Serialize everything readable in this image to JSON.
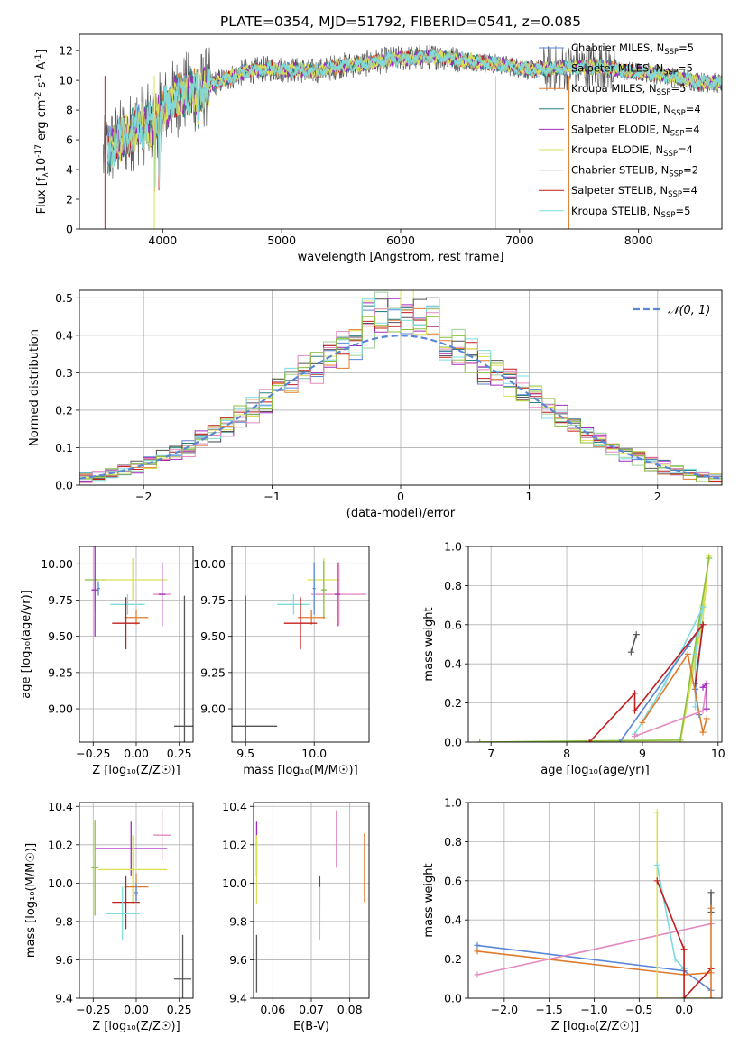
{
  "title": "PLATE=0354, MJD=51792, FIBERID=0541, z=0.085",
  "model_colors": {
    "Chabrier MILES": "#5a86d6",
    "Salpeter MILES": "#9fd09a",
    "Kroupa MILES": "#e07b2c",
    "Chabrier ELODIE": "#2f7f7f",
    "Salpeter ELODIE": "#a12bbd",
    "Kroupa ELODIE": "#d9e056",
    "Chabrier STELIB": "#555555",
    "Salpeter STELIB": "#c11f1f",
    "Kroupa STELIB": "#7fdbe0",
    "extra_pink": "#e38ac0",
    "extra_green": "#8cbf3f"
  },
  "chart_data": [
    {
      "id": "spectrum",
      "type": "line",
      "xlabel": "wavelength [Angstrom, rest frame]",
      "ylabel_html": "Flux [f<tspan font-size='9' dy='3'>λ</tspan><tspan dy='-3'>10</tspan><tspan font-size='9' dy='-5'>-17</tspan><tspan dy='5'> erg cm</tspan><tspan font-size='9' dy='-5'>-2</tspan><tspan dy='5'> s</tspan><tspan font-size='9' dy='-5'>-1</tspan><tspan dy='5'> A</tspan><tspan font-size='9' dy='-5'>-1</tspan><tspan dy='5'>]</tspan>",
      "xlim": [
        3300,
        8700
      ],
      "ylim": [
        0,
        13.1
      ],
      "xticks": [
        4000,
        5000,
        6000,
        7000,
        8000
      ],
      "yticks": [
        0,
        2,
        4,
        6,
        8,
        10,
        12
      ],
      "continuum": [
        [
          3500,
          4.8
        ],
        [
          3600,
          5.8
        ],
        [
          3700,
          6.3
        ],
        [
          3800,
          7.0
        ],
        [
          3900,
          7.0
        ],
        [
          4000,
          8.0
        ],
        [
          4100,
          8.8
        ],
        [
          4200,
          9.2
        ],
        [
          4300,
          9.2
        ],
        [
          4400,
          9.7
        ],
        [
          4500,
          10.0
        ],
        [
          4700,
          10.6
        ],
        [
          4900,
          10.8
        ],
        [
          5100,
          10.7
        ],
        [
          5300,
          10.6
        ],
        [
          5500,
          11.0
        ],
        [
          5700,
          11.1
        ],
        [
          5900,
          11.4
        ],
        [
          6100,
          11.5
        ],
        [
          6300,
          11.6
        ],
        [
          6500,
          11.4
        ],
        [
          6700,
          11.2
        ],
        [
          6900,
          11.0
        ],
        [
          7100,
          10.7
        ],
        [
          7300,
          10.8
        ],
        [
          7500,
          10.9
        ],
        [
          7700,
          10.9
        ],
        [
          7900,
          10.6
        ],
        [
          8100,
          10.5
        ],
        [
          8300,
          10.2
        ],
        [
          8500,
          9.9
        ],
        [
          8700,
          9.8
        ]
      ],
      "dips": [
        [
          7414,
          0
        ],
        [
          6800,
          0
        ],
        [
          3930,
          0
        ],
        [
          3510,
          0
        ]
      ],
      "legend": [
        {
          "name": "Chabrier MILES",
          "nssp": "5"
        },
        {
          "name": "Salpeter MILES",
          "nssp": "5"
        },
        {
          "name": "Kroupa MILES",
          "nssp": "5"
        },
        {
          "name": "Chabrier ELODIE",
          "nssp": "4"
        },
        {
          "name": "Salpeter ELODIE",
          "nssp": "4"
        },
        {
          "name": "Kroupa ELODIE",
          "nssp": "4"
        },
        {
          "name": "Chabrier STELIB",
          "nssp": "2"
        },
        {
          "name": "Salpeter STELIB",
          "nssp": "4"
        },
        {
          "name": "Kroupa STELIB",
          "nssp": "5"
        }
      ]
    },
    {
      "id": "residuals",
      "type": "histogram",
      "xlabel": "(data-model)/error",
      "ylabel": "Normed distribution",
      "xlim": [
        -2.5,
        2.5
      ],
      "ylim": [
        0,
        0.52
      ],
      "xticks": [
        -2,
        -1,
        0,
        1,
        2
      ],
      "xtick_labels": [
        "−2",
        "−1",
        "0",
        "1",
        "2"
      ],
      "yticks": [
        0.0,
        0.1,
        0.2,
        0.3,
        0.4,
        0.5
      ],
      "ytick_labels": [
        "0.0",
        "0.1",
        "0.2",
        "0.3",
        "0.4",
        "0.5"
      ],
      "reference_label": "𝒩(0, 1)",
      "bin_width": 0.1
    },
    {
      "id": "age_vs_Z",
      "type": "scatter",
      "xlabel": "Z [log₁₀(Z/Z☉)]",
      "ylabel": "age  [log₁₀(age/yr)]",
      "xlim": [
        -0.33,
        0.33
      ],
      "ylim": [
        8.77,
        10.12
      ],
      "xticks": [
        -0.25,
        0.0,
        0.25
      ],
      "xtick_labels": [
        "−0.25",
        "0.00",
        "0.25"
      ],
      "yticks": [
        9.0,
        9.25,
        9.5,
        9.75,
        10.0
      ],
      "ytick_labels": [
        "9.00",
        "9.25",
        "9.50",
        "9.75",
        "10.00"
      ],
      "points": [
        {
          "x": -0.24,
          "y": 9.89,
          "xerr": 0.06,
          "yerr": 0.22,
          "color": "#8cbf3f"
        },
        {
          "x": -0.02,
          "y": 9.89,
          "xerr": 0.2,
          "yerr": 0.15,
          "color": "#d9e056"
        },
        {
          "x": 0.15,
          "y": 9.79,
          "xerr": 0.05,
          "yerr": 0.22,
          "color": "#e38ac0"
        },
        {
          "x": -0.05,
          "y": 9.72,
          "xerr": 0.1,
          "yerr": 0.07,
          "color": "#7fdbe0"
        },
        {
          "x": 0.0,
          "y": 9.63,
          "xerr": 0.07,
          "yerr": 0.05,
          "color": "#e07b2c"
        },
        {
          "x": -0.06,
          "y": 9.59,
          "xerr": 0.08,
          "yerr": 0.18,
          "color": "#c11f1f"
        },
        {
          "x": 0.15,
          "y": 9.79,
          "xerr": 0.02,
          "yerr": 0.22,
          "color": "#a12bbd"
        },
        {
          "x": -0.24,
          "y": 9.82,
          "xerr": 0.02,
          "yerr": 0.32,
          "color": "#a12bbd"
        },
        {
          "x": 0.28,
          "y": 8.88,
          "xerr": 0.06,
          "yerr": 0.9,
          "color": "#555555"
        },
        {
          "x": -0.22,
          "y": 9.83,
          "xerr": 0.01,
          "yerr": 0.05,
          "color": "#5a86d6"
        }
      ]
    },
    {
      "id": "age_vs_mass",
      "type": "scatter",
      "xlabel": "mass [log₁₀(M/M☉)]",
      "ylabel": "",
      "xlim": [
        9.4,
        10.4
      ],
      "ylim": [
        8.77,
        10.12
      ],
      "xticks": [
        9.5,
        10.0
      ],
      "xtick_labels": [
        "9.5",
        "10.0"
      ],
      "yticks": [
        9.0,
        9.25,
        9.5,
        9.75,
        10.0
      ],
      "ytick_labels": [
        "9.00",
        "9.25",
        "9.50",
        "9.75",
        "10.00"
      ],
      "points": [
        {
          "x": 10.07,
          "y": 9.89,
          "xerr": 0.12,
          "yerr": 0.15,
          "color": "#d9e056"
        },
        {
          "x": 10.18,
          "y": 9.79,
          "xerr": 0.2,
          "yerr": 0.22,
          "color": "#e38ac0"
        },
        {
          "x": 10.07,
          "y": 9.82,
          "xerr": 0.02,
          "yerr": 0.2,
          "color": "#8cbf3f"
        },
        {
          "x": 9.85,
          "y": 9.72,
          "xerr": 0.12,
          "yerr": 0.07,
          "color": "#7fdbe0"
        },
        {
          "x": 9.98,
          "y": 9.63,
          "xerr": 0.1,
          "yerr": 0.05,
          "color": "#e07b2c"
        },
        {
          "x": 9.9,
          "y": 9.59,
          "xerr": 0.12,
          "yerr": 0.18,
          "color": "#c11f1f"
        },
        {
          "x": 10.17,
          "y": 9.79,
          "xerr": 0.02,
          "yerr": 0.22,
          "color": "#a12bbd"
        },
        {
          "x": 9.5,
          "y": 8.88,
          "xerr": 0.23,
          "yerr": 0.9,
          "color": "#555555"
        },
        {
          "x": 10.0,
          "y": 9.83,
          "xerr": 0.01,
          "yerr": 0.18,
          "color": "#5a86d6"
        }
      ]
    },
    {
      "id": "mass_weight_vs_age",
      "type": "line",
      "xlabel": "age  [log₁₀(age/yr)]",
      "ylabel": "mass weight",
      "xlim": [
        6.7,
        10.05
      ],
      "ylim": [
        0,
        1.0
      ],
      "xticks": [
        7,
        8,
        9,
        10
      ],
      "yticks": [
        0.0,
        0.2,
        0.4,
        0.6,
        0.8,
        1.0
      ],
      "ytick_labels": [
        "0.0",
        "0.2",
        "0.4",
        "0.6",
        "0.8",
        "1.0"
      ],
      "series": [
        {
          "color": "#d9e056",
          "pts": [
            [
              6.85,
              0.0
            ],
            [
              9.5,
              0.0
            ],
            [
              9.8,
              0.63
            ],
            [
              9.88,
              0.95
            ],
            [
              9.8,
              0.7
            ],
            [
              9.5,
              0.0
            ]
          ]
        },
        {
          "color": "#8cbf3f",
          "pts": [
            [
              6.85,
              0.0
            ],
            [
              9.5,
              0.01
            ],
            [
              9.88,
              0.94
            ]
          ]
        },
        {
          "color": "#7fdbe0",
          "pts": [
            [
              8.9,
              0.04
            ],
            [
              9.3,
              0.3
            ],
            [
              9.8,
              0.69
            ],
            [
              9.7,
              0.45
            ],
            [
              9.7,
              0.18
            ]
          ]
        },
        {
          "color": "#5a86d6",
          "pts": [
            [
              8.7,
              0.0
            ],
            [
              9.6,
              0.49
            ],
            [
              9.8,
              0.6
            ],
            [
              9.7,
              0.27
            ],
            [
              9.75,
              0.14
            ]
          ]
        },
        {
          "color": "#c11f1f",
          "pts": [
            [
              8.3,
              0.0
            ],
            [
              8.9,
              0.25
            ],
            [
              8.9,
              0.16
            ],
            [
              9.8,
              0.6
            ],
            [
              9.7,
              0.3
            ]
          ]
        },
        {
          "color": "#e07b2c",
          "pts": [
            [
              9.0,
              0.1
            ],
            [
              9.6,
              0.45
            ],
            [
              9.8,
              0.05
            ],
            [
              9.85,
              0.12
            ]
          ]
        },
        {
          "color": "#e38ac0",
          "pts": [
            [
              8.9,
              0.03
            ],
            [
              9.8,
              0.16
            ],
            [
              9.85,
              0.3
            ],
            [
              9.85,
              0.17
            ]
          ]
        },
        {
          "color": "#a12bbd",
          "pts": [
            [
              9.8,
              0.28
            ],
            [
              9.85,
              0.3
            ],
            [
              9.85,
              0.17
            ]
          ]
        },
        {
          "color": "#555555",
          "pts": [
            [
              8.85,
              0.46
            ],
            [
              8.92,
              0.55
            ]
          ]
        }
      ]
    },
    {
      "id": "mass_vs_Z",
      "type": "scatter",
      "xlabel": "Z [log₁₀(Z/Z☉)]",
      "ylabel": "mass [log₁₀(M/M☉)]",
      "xlim": [
        -0.33,
        0.33
      ],
      "ylim": [
        9.4,
        10.42
      ],
      "xticks": [
        -0.25,
        0.0,
        0.25
      ],
      "xtick_labels": [
        "−0.25",
        "0.00",
        "0.25"
      ],
      "yticks": [
        9.4,
        9.6,
        9.8,
        10.0,
        10.2,
        10.4
      ],
      "ytick_labels": [
        "9.4",
        "9.6",
        "9.8",
        "10.0",
        "10.2",
        "10.4"
      ],
      "points": [
        {
          "x": -0.03,
          "y": 10.18,
          "xerr": 0.21,
          "yerr": 0.14,
          "color": "#a12bbd"
        },
        {
          "x": 0.15,
          "y": 10.25,
          "xerr": 0.05,
          "yerr": 0.13,
          "color": "#e38ac0"
        },
        {
          "x": -0.02,
          "y": 10.07,
          "xerr": 0.2,
          "yerr": 0.18,
          "color": "#d9e056"
        },
        {
          "x": -0.24,
          "y": 10.08,
          "xerr": 0.02,
          "yerr": 0.25,
          "color": "#8cbf3f"
        },
        {
          "x": 0.0,
          "y": 9.98,
          "xerr": 0.07,
          "yerr": 0.07,
          "color": "#e07b2c"
        },
        {
          "x": -0.06,
          "y": 9.9,
          "xerr": 0.08,
          "yerr": 0.14,
          "color": "#c11f1f"
        },
        {
          "x": -0.08,
          "y": 9.84,
          "xerr": 0.1,
          "yerr": 0.14,
          "color": "#7fdbe0"
        },
        {
          "x": 0.27,
          "y": 9.5,
          "xerr": 0.05,
          "yerr": 0.23,
          "color": "#555555"
        },
        {
          "x": 0.0,
          "y": 9.95,
          "xerr": 0.01,
          "yerr": 0.05,
          "color": "#5a86d6"
        }
      ]
    },
    {
      "id": "mass_vs_ebv",
      "type": "scatter",
      "xlabel": "E(B-V)",
      "ylabel": "",
      "xlim": [
        0.055,
        0.085
      ],
      "ylim": [
        9.4,
        10.42
      ],
      "xticks": [
        0.06,
        0.07,
        0.08
      ],
      "xtick_labels": [
        "0.06",
        "0.07",
        "0.08"
      ],
      "yticks": [
        9.4,
        9.6,
        9.8,
        10.0,
        10.2,
        10.4
      ],
      "ytick_labels": [
        "9.4",
        "9.6",
        "9.8",
        "10.0",
        "10.2",
        "10.4"
      ],
      "points": [
        {
          "x": 0.0558,
          "y": 10.18,
          "xerr": 0.0,
          "yerr": 0.14,
          "color": "#a12bbd"
        },
        {
          "x": 0.0558,
          "y": 10.07,
          "xerr": 0.0,
          "yerr": 0.18,
          "color": "#d9e056"
        },
        {
          "x": 0.0558,
          "y": 9.58,
          "xerr": 0.0,
          "yerr": 0.15,
          "color": "#555555"
        },
        {
          "x": 0.0765,
          "y": 10.23,
          "xerr": 0.0,
          "yerr": 0.15,
          "color": "#e38ac0"
        },
        {
          "x": 0.0838,
          "y": 10.08,
          "xerr": 0.0,
          "yerr": 0.18,
          "color": "#e07b2c"
        },
        {
          "x": 0.0722,
          "y": 9.96,
          "xerr": 0.0,
          "yerr": 0.08,
          "color": "#c11f1f"
        },
        {
          "x": 0.0722,
          "y": 9.84,
          "xerr": 0.0,
          "yerr": 0.14,
          "color": "#7fdbe0"
        }
      ]
    },
    {
      "id": "mass_weight_vs_Z",
      "type": "line",
      "xlabel": "Z [log₁₀(Z/Z☉)]",
      "ylabel": "mass weight",
      "xlim": [
        -2.4,
        0.42
      ],
      "ylim": [
        0,
        1.0
      ],
      "xticks": [
        -2.0,
        -1.5,
        -1.0,
        -0.5,
        0.0
      ],
      "xtick_labels": [
        "−2.0",
        "−1.5",
        "−1.0",
        "−0.5",
        "0.0"
      ],
      "yticks": [
        0.0,
        0.2,
        0.4,
        0.6,
        0.8,
        1.0
      ],
      "ytick_labels": [
        "0.0",
        "0.2",
        "0.4",
        "0.6",
        "0.8",
        "1.0"
      ],
      "series": [
        {
          "color": "#5a86d6",
          "pts": [
            [
              -2.3,
              0.27
            ],
            [
              0.0,
              0.14
            ],
            [
              0.3,
              0.04
            ]
          ]
        },
        {
          "color": "#e07b2c",
          "pts": [
            [
              -2.3,
              0.24
            ],
            [
              0.0,
              0.12
            ],
            [
              0.3,
              0.13
            ]
          ]
        },
        {
          "color": "#e38ac0",
          "pts": [
            [
              -2.3,
              0.12
            ],
            [
              0.3,
              0.38
            ]
          ]
        },
        {
          "color": "#d9e056",
          "pts": [
            [
              -0.3,
              0.95
            ],
            [
              -0.3,
              0.0
            ],
            [
              0.3,
              0.0
            ]
          ]
        },
        {
          "color": "#7fdbe0",
          "pts": [
            [
              -0.3,
              0.68
            ],
            [
              -0.1,
              0.2
            ],
            [
              0.0,
              0.15
            ]
          ]
        },
        {
          "color": "#c11f1f",
          "pts": [
            [
              -0.3,
              0.6
            ],
            [
              0.0,
              0.25
            ],
            [
              0.0,
              0.0
            ],
            [
              0.3,
              0.15
            ]
          ]
        },
        {
          "color": "#555555",
          "pts": [
            [
              0.3,
              0.54
            ],
            [
              0.3,
              0.44
            ]
          ]
        },
        {
          "color": "#e07b2c",
          "pts": [
            [
              0.3,
              0.46
            ],
            [
              0.3,
              0.0
            ]
          ]
        }
      ]
    }
  ]
}
